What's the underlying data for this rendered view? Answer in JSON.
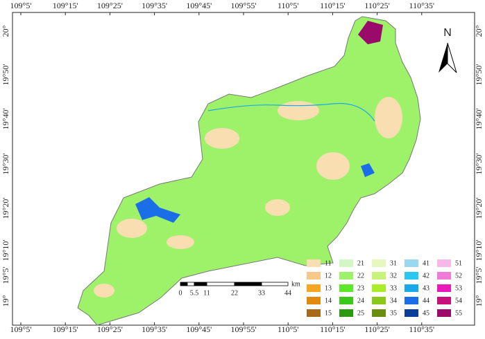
{
  "map": {
    "x_labels": [
      "109°5'",
      "109°15'",
      "109°25'",
      "109°35'",
      "109°45'",
      "109°55'",
      "110°5'",
      "110°15'",
      "110°25'",
      "110°35'"
    ],
    "y_labels": [
      "20°",
      "19°50'",
      "19°40'",
      "19°30'",
      "19°20'",
      "19°10'",
      "19°5'",
      "19°"
    ],
    "north": "N",
    "scale": {
      "labels": [
        "0",
        "5.5",
        "11",
        "22",
        "33",
        "44"
      ],
      "unit": "km"
    },
    "legend": [
      {
        "code": "11",
        "color": "#f8deb0"
      },
      {
        "code": "12",
        "color": "#f6c98a"
      },
      {
        "code": "13",
        "color": "#f5a623"
      },
      {
        "code": "14",
        "color": "#e08a10"
      },
      {
        "code": "15",
        "color": "#a86a1a"
      },
      {
        "code": "21",
        "color": "#d2f7c4"
      },
      {
        "code": "22",
        "color": "#9ef26a"
      },
      {
        "code": "23",
        "color": "#5ee62a"
      },
      {
        "code": "24",
        "color": "#3cc81a"
      },
      {
        "code": "25",
        "color": "#2a9a10"
      },
      {
        "code": "31",
        "color": "#e6f8c0"
      },
      {
        "code": "32",
        "color": "#c8f27a"
      },
      {
        "code": "33",
        "color": "#a8ec2a"
      },
      {
        "code": "34",
        "color": "#8cc81a"
      },
      {
        "code": "35",
        "color": "#6a8e10"
      },
      {
        "code": "41",
        "color": "#9ad8f2"
      },
      {
        "code": "42",
        "color": "#2ac8f0"
      },
      {
        "code": "43",
        "color": "#1aa8e8"
      },
      {
        "code": "44",
        "color": "#1a6ee8"
      },
      {
        "code": "45",
        "color": "#0a3e9a"
      },
      {
        "code": "51",
        "color": "#f6b8e6"
      },
      {
        "code": "52",
        "color": "#f07ad8"
      },
      {
        "code": "53",
        "color": "#e81ab8"
      },
      {
        "code": "54",
        "color": "#c8107a"
      },
      {
        "code": "55",
        "color": "#9a0a6a"
      }
    ]
  }
}
